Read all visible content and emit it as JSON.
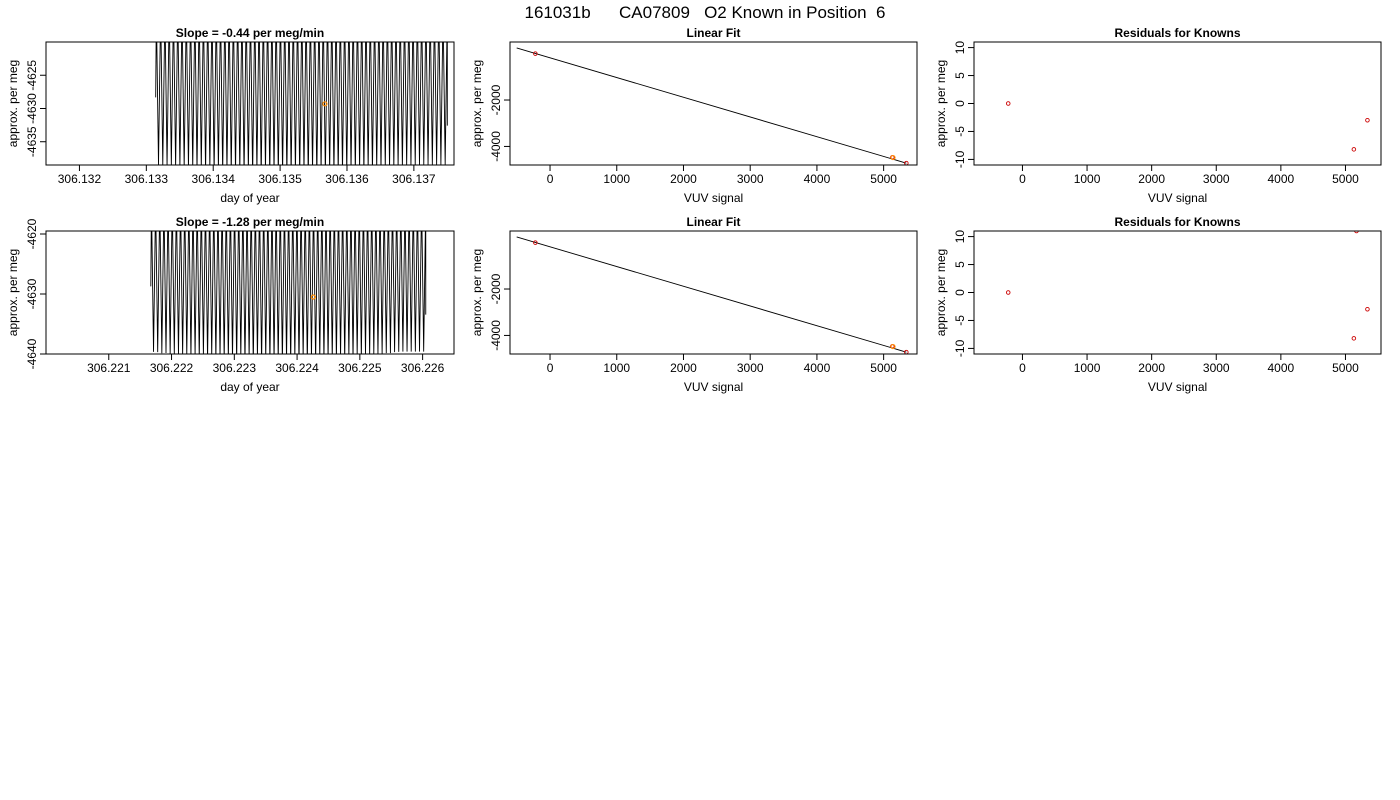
{
  "page_title": "161031b      CA07809   O2 Known in Position  6",
  "colors": {
    "trace": "#000000",
    "point": "#cc0000",
    "highlight": "#ff8c00",
    "frame": "#000000"
  },
  "chart_data": [
    {
      "type": "line",
      "title": "Slope =  -0.44  per meg/min",
      "xlabel": "day of year",
      "ylabel": "approx. per meg",
      "xlim": [
        306.1315,
        306.1376
      ],
      "ylim": [
        -4638.5,
        -4620
      ],
      "xticks": [
        306.132,
        306.133,
        306.134,
        306.135,
        306.136,
        306.137
      ],
      "xtick_labels": [
        "306.132",
        "306.133",
        "306.134",
        "306.135",
        "306.136",
        "306.137"
      ],
      "yticks": [
        -4635,
        -4630,
        -4625
      ],
      "ytick_labels": [
        "-4635",
        "-4630",
        "-4625"
      ],
      "trace": {
        "x_start": 306.13315,
        "x_end": 306.1375,
        "cycles": 68,
        "upper": -4620,
        "lower": -4638.5
      },
      "highlight": {
        "x": 306.13567,
        "y": -4629.3
      }
    },
    {
      "type": "scatter",
      "title": "Linear Fit",
      "xlabel": "VUV signal",
      "ylabel": "approx. per meg",
      "xlim": [
        -600,
        5500
      ],
      "ylim": [
        -4800,
        500
      ],
      "xticks": [
        0,
        1000,
        2000,
        3000,
        4000,
        5000
      ],
      "xtick_labels": [
        "0",
        "1000",
        "2000",
        "3000",
        "4000",
        "5000"
      ],
      "yticks": [
        -4000,
        -2000
      ],
      "ytick_labels": [
        "-4000",
        "-2000"
      ],
      "fit_line": {
        "x": [
          -500,
          5340
        ],
        "y": [
          244,
          -4720
        ]
      },
      "points": [
        {
          "x": -220,
          "y": 0
        },
        {
          "x": 5130,
          "y": -4470
        },
        {
          "x": 5340,
          "y": -4720
        }
      ],
      "highlight": {
        "x": 5140,
        "y": -4480
      }
    },
    {
      "type": "scatter",
      "title": "Residuals for Knowns",
      "xlabel": "VUV signal",
      "ylabel": "approx. per meg",
      "xlim": [
        -750,
        5550
      ],
      "ylim": [
        -11,
        11
      ],
      "xticks": [
        0,
        1000,
        2000,
        3000,
        4000,
        5000
      ],
      "xtick_labels": [
        "0",
        "1000",
        "2000",
        "3000",
        "4000",
        "5000"
      ],
      "yticks": [
        -10,
        -5,
        0,
        5,
        10
      ],
      "ytick_labels": [
        "-10",
        "-5",
        "0",
        "5",
        "10"
      ],
      "points": [
        {
          "x": -220,
          "y": 0
        },
        {
          "x": 5130,
          "y": -8.2
        },
        {
          "x": 5340,
          "y": -3
        }
      ]
    },
    {
      "type": "line",
      "title": "Slope =  -1.28  per meg/min",
      "xlabel": "day of year",
      "ylabel": "approx. per meg",
      "xlim": [
        306.22,
        306.2265
      ],
      "ylim": [
        -4640,
        -4619.5
      ],
      "xticks": [
        306.221,
        306.222,
        306.223,
        306.224,
        306.225,
        306.226
      ],
      "xtick_labels": [
        "306.221",
        "306.222",
        "306.223",
        "306.224",
        "306.225",
        "306.226"
      ],
      "yticks": [
        -4640,
        -4630,
        -4620
      ],
      "ytick_labels": [
        "-4640",
        "-4630",
        "-4620"
      ],
      "trace": {
        "x_start": 306.22168,
        "x_end": 306.22605,
        "cycles": 66,
        "upper": -4619.5,
        "lower": -4640
      },
      "highlight": {
        "x": 306.22426,
        "y": -4630.5
      }
    },
    {
      "type": "scatter",
      "title": "Linear Fit",
      "xlabel": "VUV signal",
      "ylabel": "approx. per meg",
      "xlim": [
        -600,
        5500
      ],
      "ylim": [
        -4800,
        500
      ],
      "xticks": [
        0,
        1000,
        2000,
        3000,
        4000,
        5000
      ],
      "xtick_labels": [
        "0",
        "1000",
        "2000",
        "3000",
        "4000",
        "5000"
      ],
      "yticks": [
        -4000,
        -2000
      ],
      "ytick_labels": [
        "-4000",
        "-2000"
      ],
      "fit_line": {
        "x": [
          -500,
          5340
        ],
        "y": [
          244,
          -4720
        ]
      },
      "points": [
        {
          "x": -220,
          "y": 0
        },
        {
          "x": 5130,
          "y": -4470
        },
        {
          "x": 5340,
          "y": -4720
        }
      ],
      "highlight": {
        "x": 5140,
        "y": -4480
      }
    },
    {
      "type": "scatter",
      "title": "Residuals for Knowns",
      "xlabel": "VUV signal",
      "ylabel": "approx. per meg",
      "xlim": [
        -750,
        5550
      ],
      "ylim": [
        -11,
        11
      ],
      "xticks": [
        0,
        1000,
        2000,
        3000,
        4000,
        5000
      ],
      "xtick_labels": [
        "0",
        "1000",
        "2000",
        "3000",
        "4000",
        "5000"
      ],
      "yticks": [
        -10,
        -5,
        0,
        5,
        10
      ],
      "ytick_labels": [
        "-10",
        "-5",
        "0",
        "5",
        "10"
      ],
      "points": [
        {
          "x": -220,
          "y": 0
        },
        {
          "x": 5130,
          "y": -8.2
        },
        {
          "x": 5340,
          "y": -3
        },
        {
          "x": 5170,
          "y": 11
        }
      ]
    }
  ]
}
